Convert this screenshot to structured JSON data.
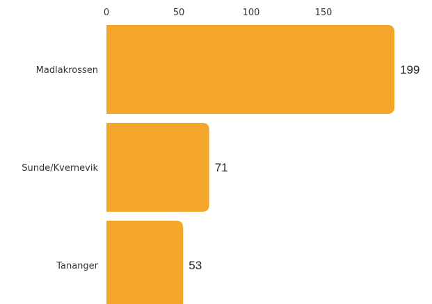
{
  "chart_data": {
    "type": "bar",
    "orientation": "horizontal",
    "categories": [
      "Madlakrossen",
      "Sunde/Kvernevik",
      "Tananger"
    ],
    "values": [
      199,
      71,
      53
    ],
    "data_labels": [
      "199",
      "71",
      "53"
    ],
    "xticks": [
      0,
      50,
      100,
      150
    ],
    "xtick_labels": [
      "0",
      "50",
      "100",
      "150"
    ],
    "xaxis_position": "top",
    "xlim": [
      0,
      199
    ],
    "grid": false,
    "legend": "none",
    "bar_color": "#F4A62A"
  }
}
